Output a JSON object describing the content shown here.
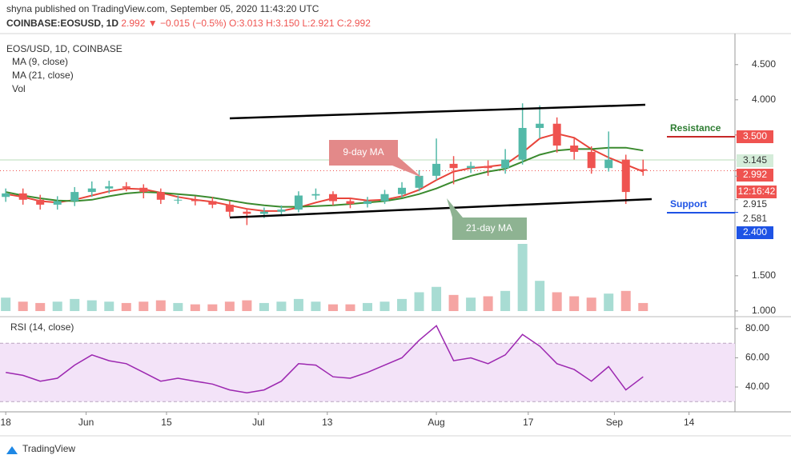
{
  "header": {
    "publisher": "shyna published on TradingView.com, September 05, 2020 11:43:20 UTC",
    "symbol": "COINBASE:EOSUSD, 1D",
    "last": "2.992",
    "change": "▼ −0.015 (−0.5%)",
    "ohlc": [
      "O:3.013",
      "H:3.150",
      "L:2.921",
      "C:2.992"
    ]
  },
  "footer": {
    "brand": "TradingView"
  },
  "chart_data": {
    "type": "candlestick",
    "title": "EOS/USD, 1D, COINBASE",
    "x": [
      0,
      3,
      6,
      9,
      12,
      15,
      18,
      21,
      24,
      27,
      30,
      33,
      36,
      39,
      42,
      45,
      48,
      51,
      54,
      57,
      60,
      63,
      66,
      69,
      72,
      75,
      78,
      81,
      84,
      87,
      90,
      93,
      96,
      99,
      102,
      105,
      108,
      111
    ],
    "open": [
      2.62,
      2.67,
      2.58,
      2.51,
      2.56,
      2.69,
      2.74,
      2.77,
      2.75,
      2.69,
      2.58,
      2.58,
      2.56,
      2.51,
      2.41,
      2.38,
      2.41,
      2.44,
      2.64,
      2.66,
      2.56,
      2.52,
      2.56,
      2.66,
      2.75,
      2.92,
      3.09,
      3.03,
      3.06,
      3.03,
      3.15,
      3.6,
      3.66,
      3.35,
      3.26,
      3.03,
      3.15,
      3.013
    ],
    "high": [
      2.74,
      2.74,
      2.65,
      2.63,
      2.76,
      2.84,
      2.85,
      2.83,
      2.8,
      2.74,
      2.64,
      2.63,
      2.62,
      2.56,
      2.46,
      2.47,
      2.5,
      2.7,
      2.74,
      2.7,
      2.6,
      2.62,
      2.72,
      2.83,
      3.0,
      3.45,
      3.2,
      3.12,
      3.14,
      3.3,
      3.95,
      3.92,
      3.75,
      3.45,
      3.34,
      3.55,
      3.22,
      3.15
    ],
    "low": [
      2.55,
      2.51,
      2.44,
      2.44,
      2.49,
      2.62,
      2.67,
      2.7,
      2.6,
      2.52,
      2.52,
      2.5,
      2.46,
      2.34,
      2.22,
      2.32,
      2.36,
      2.4,
      2.58,
      2.5,
      2.46,
      2.47,
      2.52,
      2.61,
      2.7,
      2.86,
      2.8,
      2.96,
      2.92,
      2.95,
      3.08,
      3.45,
      3.25,
      3.15,
      2.95,
      2.98,
      2.52,
      2.921
    ],
    "close": [
      2.67,
      2.58,
      2.51,
      2.56,
      2.69,
      2.74,
      2.77,
      2.75,
      2.69,
      2.58,
      2.58,
      2.56,
      2.51,
      2.41,
      2.38,
      2.41,
      2.44,
      2.64,
      2.66,
      2.56,
      2.52,
      2.56,
      2.66,
      2.75,
      2.92,
      3.09,
      3.03,
      3.06,
      3.03,
      3.15,
      3.6,
      3.66,
      3.35,
      3.26,
      3.03,
      3.15,
      2.69,
      2.992
    ],
    "up_color": "#53b9a8",
    "down_color": "#ef5350",
    "xlim": [
      -1,
      127
    ],
    "ylim": [
      0.93,
      4.85
    ],
    "xticks": [
      {
        "value": 0,
        "label": "18"
      },
      {
        "value": 14,
        "label": "Jun"
      },
      {
        "value": 28,
        "label": "15"
      },
      {
        "value": 44,
        "label": "Jul"
      },
      {
        "value": 56,
        "label": "13"
      },
      {
        "value": 75,
        "label": "Aug"
      },
      {
        "value": 91,
        "label": "17"
      },
      {
        "value": 106,
        "label": "Sep"
      },
      {
        "value": 119,
        "label": "14"
      }
    ],
    "yticks": [
      {
        "value": 1,
        "label": "1.000"
      },
      {
        "value": 1.5,
        "label": "1.500"
      },
      {
        "value": 4,
        "label": "4.000"
      },
      {
        "value": 4.5,
        "label": "4.500"
      }
    ],
    "grid": false,
    "series": [
      {
        "name": "MA (9, close)",
        "color": "#e8443a",
        "values": [
          2.66,
          2.62,
          2.56,
          2.54,
          2.58,
          2.64,
          2.7,
          2.74,
          2.73,
          2.68,
          2.62,
          2.58,
          2.55,
          2.5,
          2.45,
          2.42,
          2.42,
          2.47,
          2.54,
          2.6,
          2.6,
          2.57,
          2.58,
          2.63,
          2.72,
          2.86,
          2.98,
          3.03,
          3.05,
          3.08,
          3.25,
          3.45,
          3.52,
          3.46,
          3.3,
          3.18,
          3.08,
          2.98
        ]
      },
      {
        "name": "MA (21, close)",
        "color": "#3a8a2e",
        "values": [
          2.69,
          2.64,
          2.6,
          2.57,
          2.56,
          2.58,
          2.63,
          2.67,
          2.69,
          2.68,
          2.66,
          2.64,
          2.61,
          2.57,
          2.53,
          2.5,
          2.48,
          2.48,
          2.49,
          2.5,
          2.52,
          2.54,
          2.56,
          2.6,
          2.66,
          2.74,
          2.84,
          2.92,
          2.98,
          3.02,
          3.12,
          3.22,
          3.28,
          3.3,
          3.3,
          3.32,
          3.32,
          3.28
        ]
      }
    ],
    "volume": {
      "name": "Vol",
      "values": [
        20,
        14,
        12,
        14,
        18,
        16,
        14,
        12,
        14,
        16,
        12,
        10,
        10,
        14,
        16,
        12,
        14,
        18,
        14,
        10,
        10,
        12,
        14,
        18,
        28,
        36,
        24,
        20,
        22,
        30,
        100,
        45,
        28,
        22,
        20,
        26,
        30,
        12
      ]
    },
    "rsi": {
      "name": "RSI (14, close)",
      "color": "#9c27b0",
      "ylim": [
        23,
        86
      ],
      "band": [
        30,
        70
      ],
      "yticks": [
        {
          "value": 40,
          "label": "40.00"
        },
        {
          "value": 60,
          "label": "60.00"
        },
        {
          "value": 80,
          "label": "80.00"
        }
      ],
      "values": [
        50,
        48,
        44,
        46,
        55,
        62,
        58,
        56,
        50,
        44,
        46,
        44,
        42,
        38,
        36,
        38,
        44,
        56,
        55,
        47,
        46,
        50,
        55,
        60,
        72,
        82,
        58,
        60,
        56,
        62,
        76,
        68,
        56,
        52,
        44,
        54,
        38,
        47
      ]
    },
    "annotations": [
      "9-day MA",
      "21-day MA",
      "Resistance",
      "Support"
    ],
    "price_labels": [
      {
        "value": 3.5,
        "label": "3.500"
      },
      3.145,
      2.992,
      2.915,
      2.581,
      {
        "value": 2.4,
        "label": "2.400"
      }
    ],
    "countdown": "12:16:42"
  }
}
